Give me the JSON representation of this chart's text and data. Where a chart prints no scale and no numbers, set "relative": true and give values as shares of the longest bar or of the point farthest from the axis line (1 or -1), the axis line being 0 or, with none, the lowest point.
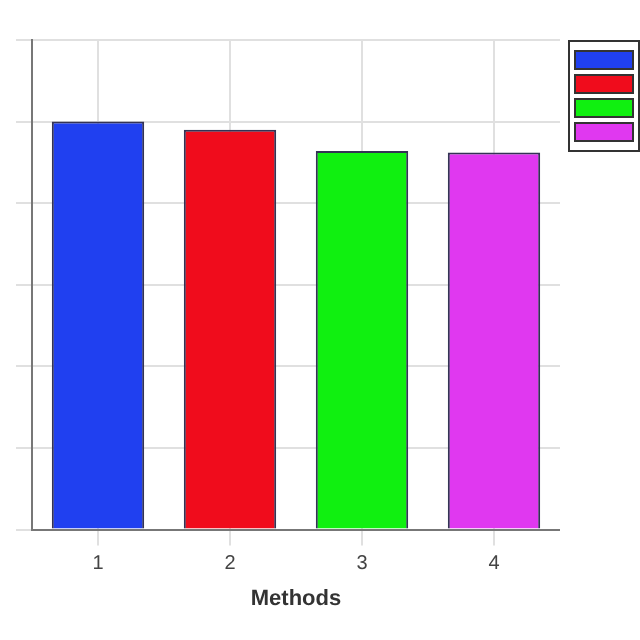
{
  "chart_data": {
    "type": "bar",
    "relative": true,
    "xlabel": "Methods",
    "categories": [
      "1",
      "2",
      "3",
      "4"
    ],
    "series": [
      {
        "color": "#2040f0",
        "values": [
          1,
          null,
          null,
          null
        ]
      },
      {
        "color": "#f00c1c",
        "values": [
          null,
          0.98,
          null,
          null
        ]
      },
      {
        "color": "#10f010",
        "values": [
          null,
          null,
          0.928,
          null
        ]
      },
      {
        "color": "#e038f0",
        "values": [
          null,
          null,
          null,
          0.924
        ]
      }
    ],
    "grid": true
  }
}
